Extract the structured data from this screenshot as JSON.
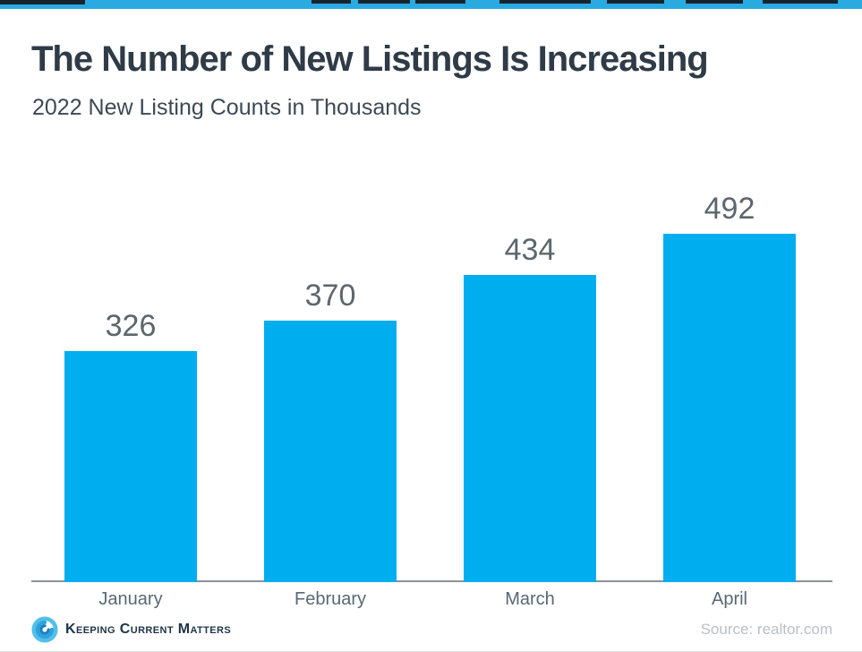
{
  "header": {
    "title": "The Number of New Listings Is Increasing",
    "subtitle": "2022 New Listing Counts in Thousands"
  },
  "chart_data": {
    "type": "bar",
    "title": "The Number of New Listings Is Increasing",
    "subtitle": "2022 New Listing Counts in Thousands",
    "categories": [
      "January",
      "February",
      "March",
      "April"
    ],
    "values": [
      326,
      370,
      434,
      492
    ],
    "unit": "thousands of new listings",
    "xlabel": "",
    "ylabel": "",
    "ylim": [
      0,
      580
    ],
    "grid": false,
    "legend": false,
    "data_labels": true,
    "bar_color": "#00AEEF"
  },
  "footer": {
    "logo_text": "Keeping Current Matters",
    "source": "Source: realtor.com"
  },
  "colors": {
    "top_strip_blue": "#29ABE2",
    "bar_blue": "#00AEEF",
    "title_dark": "#2F3B47",
    "subtitle_dark": "#3D4954",
    "value_label_gray": "#5C666D",
    "month_label_gray": "#5A6874",
    "axis_gray": "#8D9297",
    "source_gray": "#B9C0C7",
    "brand_navy": "#1F3447"
  }
}
